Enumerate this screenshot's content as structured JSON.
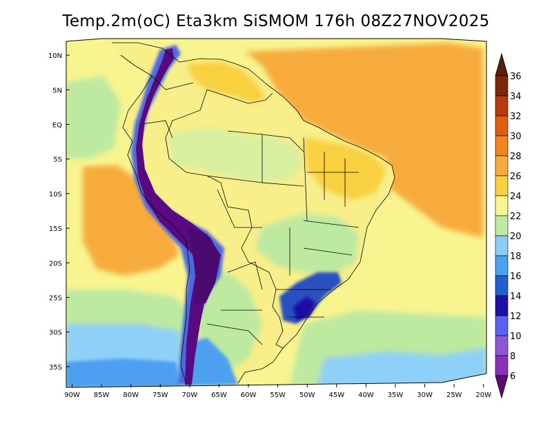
{
  "title": "Temp.2m(oC) Eta3km SiSMOM 176h 08Z27NOV2025",
  "map": {
    "lon_min": -91,
    "lon_max": -19.5,
    "lat_min": -38,
    "lat_max": 12,
    "lat_ticks": [
      {
        "value": 10,
        "label": "10N"
      },
      {
        "value": 5,
        "label": "5N"
      },
      {
        "value": 0,
        "label": "EQ"
      },
      {
        "value": -5,
        "label": "5S"
      },
      {
        "value": -10,
        "label": "10S"
      },
      {
        "value": -15,
        "label": "15S"
      },
      {
        "value": -20,
        "label": "20S"
      },
      {
        "value": -25,
        "label": "25S"
      },
      {
        "value": -30,
        "label": "30S"
      },
      {
        "value": -35,
        "label": "35S"
      }
    ],
    "lon_ticks": [
      {
        "value": -90,
        "label": "90W"
      },
      {
        "value": -85,
        "label": "85W"
      },
      {
        "value": -80,
        "label": "80W"
      },
      {
        "value": -75,
        "label": "75W"
      },
      {
        "value": -70,
        "label": "70W"
      },
      {
        "value": -65,
        "label": "65W"
      },
      {
        "value": -60,
        "label": "60W"
      },
      {
        "value": -55,
        "label": "55W"
      },
      {
        "value": -50,
        "label": "50W"
      },
      {
        "value": -45,
        "label": "45W"
      },
      {
        "value": -40,
        "label": "40W"
      },
      {
        "value": -35,
        "label": "35W"
      },
      {
        "value": -30,
        "label": "30W"
      },
      {
        "value": -25,
        "label": "25W"
      },
      {
        "value": -20,
        "label": "20W"
      }
    ]
  },
  "colorbar": {
    "levels": [
      {
        "label": "6",
        "color": "#6a0a8c"
      },
      {
        "label": "8",
        "color": "#8c2fb8"
      },
      {
        "label": "10",
        "color": "#8f55d8"
      },
      {
        "label": "12",
        "color": "#5a60f0"
      },
      {
        "label": "14",
        "color": "#1c10a8"
      },
      {
        "label": "16",
        "color": "#1f5fd0"
      },
      {
        "label": "18",
        "color": "#4ea0f0"
      },
      {
        "label": "20",
        "color": "#8ccdf6"
      },
      {
        "label": "22",
        "color": "#bde9a0"
      },
      {
        "label": "24",
        "color": "#f8f490"
      },
      {
        "label": "26",
        "color": "#f8d040"
      },
      {
        "label": "28",
        "color": "#f7ab3c"
      },
      {
        "label": "30",
        "color": "#f28420"
      },
      {
        "label": "32",
        "color": "#e35c14"
      },
      {
        "label": "34",
        "color": "#b53a10"
      },
      {
        "label": "36",
        "color": "#7c2808"
      }
    ],
    "below_color": "#5e0a78",
    "above_color": "#5a200a"
  },
  "colors": {
    "ocean_south": "#8fd0f8",
    "ocean_mid": "#bde9a0",
    "ocean_warm": "#f8f490",
    "ocean_hot": "#f7ab3c",
    "land": "#f8ee8a",
    "andes": "#5a0a80",
    "highland_cold": "#2a50c0",
    "borders": "#000000"
  }
}
